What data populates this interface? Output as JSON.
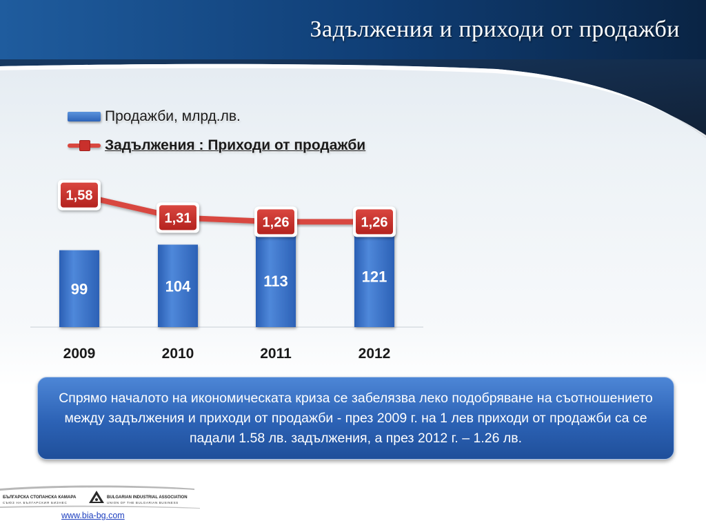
{
  "slide": {
    "title": "Задължения и приходи от продажби",
    "info_text": "Спрямо началото на икономическата криза се забелязва леко подобряване на съотношението между задължения и приходи от продажби - през 2009 г. на 1 лев приходи от продажби са се падали 1.58 лв. задължения, а през 2012 г. – 1.26 лв.",
    "footer_url": "www.bia-bg.com"
  },
  "logo": {
    "left_text": "БЪЛГАРСКА СТОПАНСКА КАМАРА",
    "left_sub": "СЪЮЗ НА БЪЛГАРСКИЯ БИЗНЕС",
    "right_text": "BULGARIAN INDUSTRIAL ASSOCIATION",
    "right_sub": "UNION OF THE BULGARIAN BUSINESS"
  },
  "colors": {
    "header_dark": "#0b2a4e",
    "header_blue": "#1f5c9e",
    "bar": "#3a72c8",
    "line": "#d8473f",
    "label_box": "#c9302c"
  },
  "chart_data": {
    "type": "bar",
    "categories": [
      "2009",
      "2010",
      "2011",
      "2012"
    ],
    "series": [
      {
        "name": "Продажби, млрд.лв.",
        "type": "bar",
        "values": [
          99,
          104,
          113,
          121
        ],
        "labels": [
          "99",
          "104",
          "113",
          "121"
        ]
      },
      {
        "name": "Задължения : Приходи от продажби",
        "type": "line",
        "values": [
          1.58,
          1.31,
          1.26,
          1.26
        ],
        "labels": [
          "1,58",
          "1,31",
          "1,26",
          "1,26"
        ]
      }
    ],
    "legend": "top-left",
    "grid": false
  }
}
